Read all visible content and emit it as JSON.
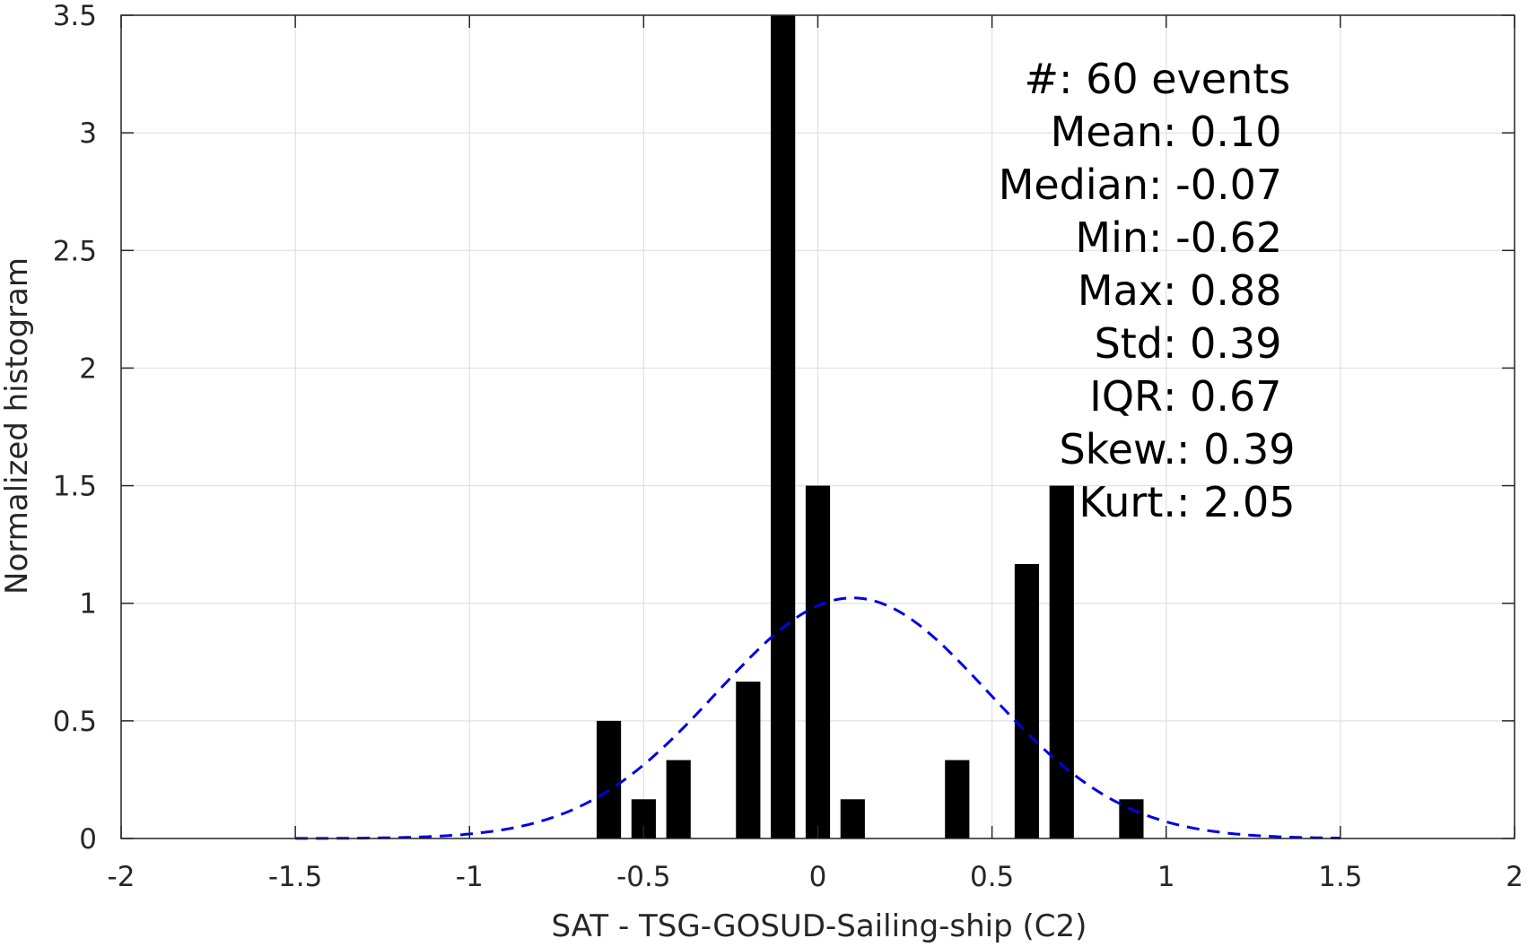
{
  "chart_data": {
    "type": "bar",
    "xlabel": "SAT - TSG-GOSUD-Sailing-ship (C2)",
    "ylabel": "Normalized histogram",
    "xlim": [
      -2,
      2
    ],
    "ylim": [
      0,
      3.5
    ],
    "grid": true,
    "x_ticks": [
      -2,
      -1.5,
      -1,
      -0.5,
      0,
      0.5,
      1,
      1.5,
      2
    ],
    "x_tick_labels": [
      "-2",
      "-1.5",
      "-1",
      "-0.5",
      "0",
      "0.5",
      "1",
      "1.5",
      "2"
    ],
    "y_ticks": [
      0,
      0.5,
      1,
      1.5,
      2,
      2.5,
      3,
      3.5
    ],
    "y_tick_labels": [
      "0",
      "0.5",
      "1",
      "1.5",
      "2",
      "2.5",
      "3",
      "3.5"
    ],
    "bar_color": "#000000",
    "bar_width": 0.07,
    "bars": [
      {
        "x": -0.6,
        "value": 0.5
      },
      {
        "x": -0.5,
        "value": 0.1667
      },
      {
        "x": -0.4,
        "value": 0.3333
      },
      {
        "x": -0.2,
        "value": 0.6667
      },
      {
        "x": -0.1,
        "value": 3.5
      },
      {
        "x": 0.0,
        "value": 1.5
      },
      {
        "x": 0.1,
        "value": 0.1667
      },
      {
        "x": 0.4,
        "value": 0.3333
      },
      {
        "x": 0.6,
        "value": 1.1667
      },
      {
        "x": 0.7,
        "value": 1.5
      },
      {
        "x": 0.9,
        "value": 0.1667
      }
    ],
    "fit_curve": {
      "style": "dashed",
      "color": "#0000e6",
      "mean": 0.1,
      "std": 0.39,
      "x_range": [
        -1.5,
        1.5
      ]
    },
    "stats": [
      {
        "label": "#  ",
        "value": ": 60 events"
      },
      {
        "label": "Mean ",
        "value": ": 0.10"
      },
      {
        "label": "Median ",
        "value": ": -0.07"
      },
      {
        "label": "Min ",
        "value": ": -0.62"
      },
      {
        "label": "Max ",
        "value": ": 0.88"
      },
      {
        "label": "Std ",
        "value": ": 0.39"
      },
      {
        "label": "IQR ",
        "value": ": 0.67"
      },
      {
        "label": "Skew. ",
        "value": ": 0.39"
      },
      {
        "label": "Kurt. ",
        "value": ": 2.05"
      }
    ]
  }
}
